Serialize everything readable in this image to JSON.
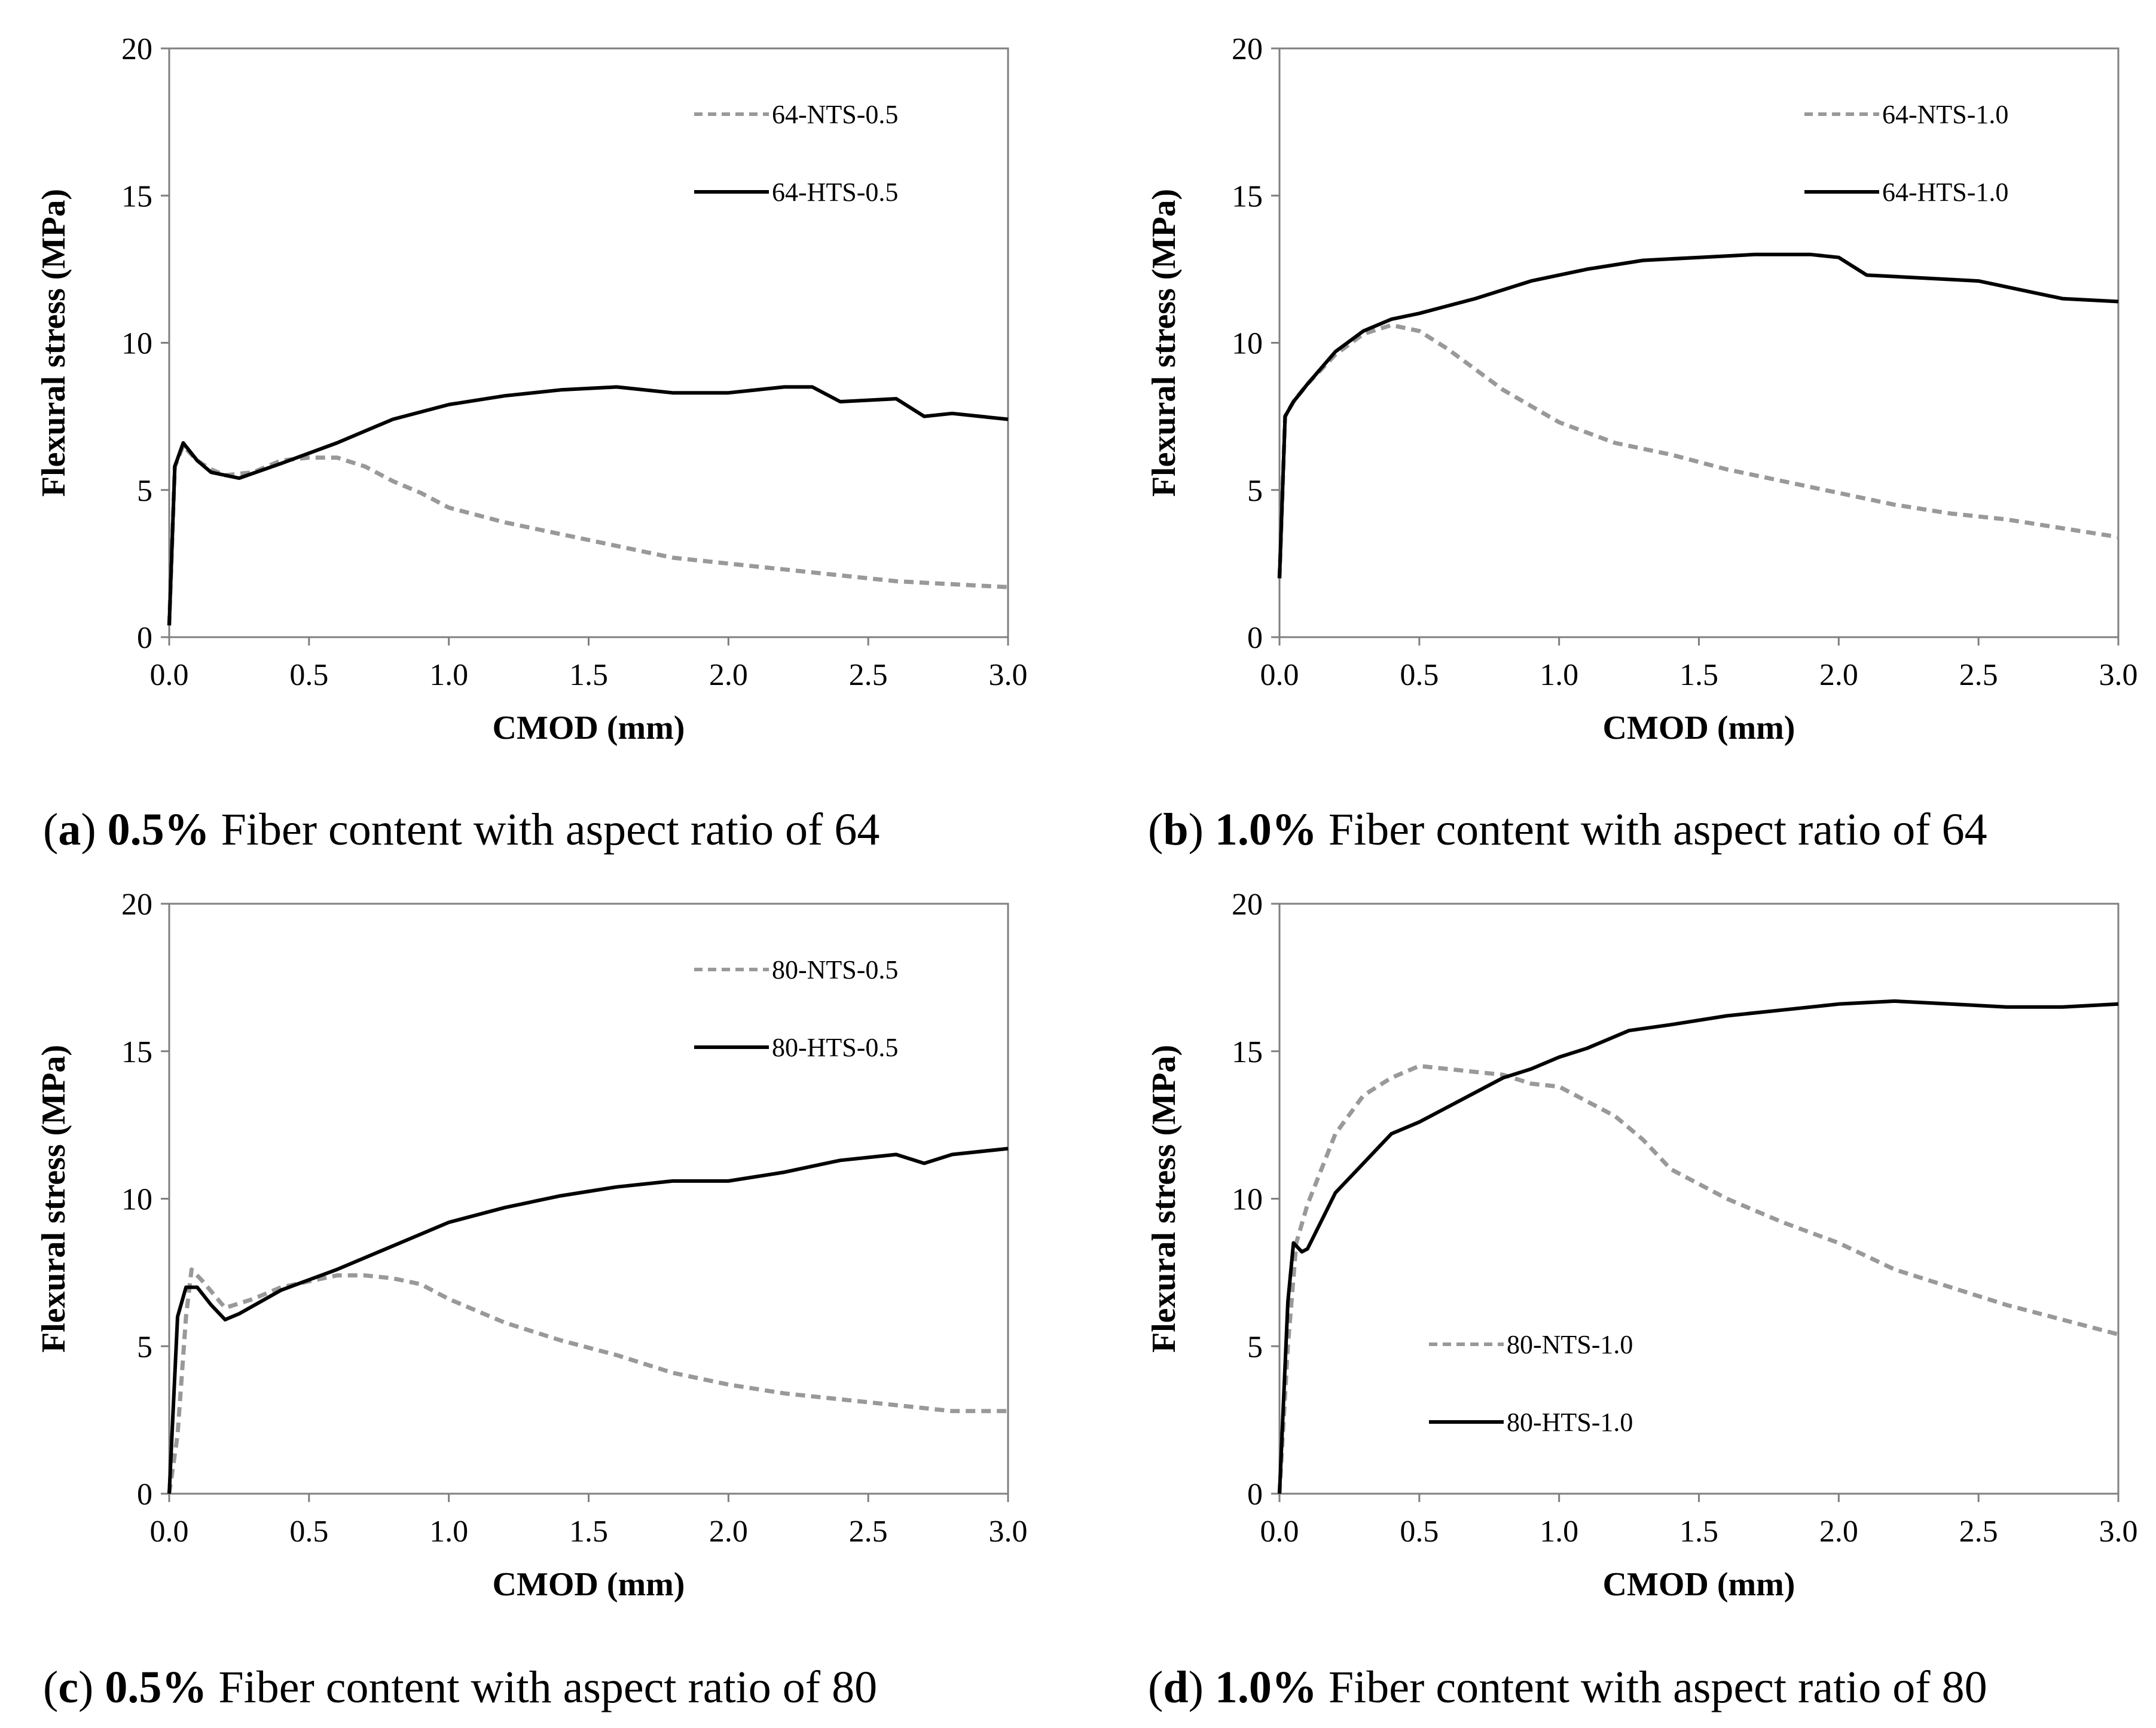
{
  "chart_data": [
    {
      "type": "line",
      "panel": "a",
      "xlabel": "CMOD (mm)",
      "ylabel": "Flexural stress (MPa)",
      "xlim": [
        0,
        3.0
      ],
      "ylim": [
        0,
        20
      ],
      "xticks": [
        "0.0",
        "0.5",
        "1.0",
        "1.5",
        "2.0",
        "2.5",
        "3.0"
      ],
      "yticks": [
        "0",
        "5",
        "10",
        "15",
        "20"
      ],
      "legend_position": "top-right",
      "caption": {
        "letter": "a",
        "bold": "0.5%",
        "text": " Fiber content with aspect ratio of 64"
      },
      "series": [
        {
          "name": "64-NTS-0.5",
          "style": "dashed",
          "color": "#999999",
          "x": [
            0,
            0.02,
            0.05,
            0.1,
            0.15,
            0.2,
            0.3,
            0.4,
            0.5,
            0.6,
            0.7,
            0.8,
            0.9,
            1.0,
            1.2,
            1.4,
            1.6,
            1.8,
            2.0,
            2.2,
            2.4,
            2.6,
            2.8,
            3.0
          ],
          "y": [
            0.4,
            5.8,
            6.5,
            6.0,
            5.7,
            5.5,
            5.6,
            6.0,
            6.1,
            6.1,
            5.8,
            5.3,
            4.9,
            4.4,
            3.9,
            3.5,
            3.1,
            2.7,
            2.5,
            2.3,
            2.1,
            1.9,
            1.8,
            1.7
          ]
        },
        {
          "name": "64-HTS-0.5",
          "style": "solid",
          "color": "#000000",
          "x": [
            0,
            0.02,
            0.05,
            0.1,
            0.15,
            0.2,
            0.25,
            0.4,
            0.6,
            0.8,
            1.0,
            1.2,
            1.4,
            1.6,
            1.8,
            2.0,
            2.2,
            2.3,
            2.4,
            2.6,
            2.7,
            2.8,
            3.0
          ],
          "y": [
            0.4,
            5.8,
            6.6,
            6.0,
            5.6,
            5.5,
            5.4,
            5.9,
            6.6,
            7.4,
            7.9,
            8.2,
            8.4,
            8.5,
            8.3,
            8.3,
            8.5,
            8.5,
            8.0,
            8.1,
            7.5,
            7.6,
            7.4
          ]
        }
      ]
    },
    {
      "type": "line",
      "panel": "b",
      "xlabel": "CMOD (mm)",
      "ylabel": "Flexural stress (MPa)",
      "xlim": [
        0,
        3.0
      ],
      "ylim": [
        0,
        20
      ],
      "xticks": [
        "0.0",
        "0.5",
        "1.0",
        "1.5",
        "2.0",
        "2.5",
        "3.0"
      ],
      "yticks": [
        "0",
        "5",
        "10",
        "15",
        "20"
      ],
      "legend_position": "top-right",
      "caption": {
        "letter": "b",
        "bold": "1.0%",
        "text": " Fiber content with aspect ratio of 64"
      },
      "series": [
        {
          "name": "64-NTS-1.0",
          "style": "dashed",
          "color": "#999999",
          "x": [
            0,
            0.02,
            0.05,
            0.1,
            0.2,
            0.3,
            0.4,
            0.5,
            0.6,
            0.7,
            0.8,
            1.0,
            1.2,
            1.4,
            1.6,
            1.8,
            2.0,
            2.2,
            2.4,
            2.6,
            2.8,
            3.0
          ],
          "y": [
            2.0,
            7.5,
            8.0,
            8.6,
            9.6,
            10.3,
            10.6,
            10.4,
            9.8,
            9.1,
            8.4,
            7.3,
            6.6,
            6.2,
            5.7,
            5.3,
            4.9,
            4.5,
            4.2,
            4.0,
            3.7,
            3.4
          ]
        },
        {
          "name": "64-HTS-1.0",
          "style": "solid",
          "color": "#000000",
          "x": [
            0,
            0.02,
            0.05,
            0.1,
            0.2,
            0.3,
            0.4,
            0.5,
            0.7,
            0.9,
            1.1,
            1.3,
            1.5,
            1.7,
            1.9,
            2.0,
            2.1,
            2.3,
            2.5,
            2.7,
            2.8,
            3.0
          ],
          "y": [
            2.0,
            7.5,
            8.0,
            8.6,
            9.7,
            10.4,
            10.8,
            11.0,
            11.5,
            12.1,
            12.5,
            12.8,
            12.9,
            13.0,
            13.0,
            12.9,
            12.3,
            12.2,
            12.1,
            11.7,
            11.5,
            11.4
          ]
        }
      ]
    },
    {
      "type": "line",
      "panel": "c",
      "xlabel": "CMOD (mm)",
      "ylabel": "Flexural stress (MPa)",
      "xlim": [
        0,
        3.0
      ],
      "ylim": [
        0,
        20
      ],
      "xticks": [
        "0.0",
        "0.5",
        "1.0",
        "1.5",
        "2.0",
        "2.5",
        "3.0"
      ],
      "yticks": [
        "0",
        "5",
        "10",
        "15",
        "20"
      ],
      "legend_position": "top-right",
      "caption": {
        "letter": "c",
        "bold": "0.5%",
        "text": " Fiber content with aspect ratio of 80"
      },
      "series": [
        {
          "name": "80-NTS-0.5",
          "style": "dashed",
          "color": "#999999",
          "x": [
            0,
            0.03,
            0.06,
            0.08,
            0.12,
            0.2,
            0.3,
            0.4,
            0.5,
            0.6,
            0.7,
            0.8,
            0.9,
            1.0,
            1.2,
            1.4,
            1.6,
            1.8,
            2.0,
            2.2,
            2.4,
            2.6,
            2.8,
            3.0
          ],
          "y": [
            0,
            2.0,
            6.0,
            7.6,
            7.2,
            6.3,
            6.6,
            7.0,
            7.2,
            7.4,
            7.4,
            7.3,
            7.1,
            6.6,
            5.8,
            5.2,
            4.7,
            4.1,
            3.7,
            3.4,
            3.2,
            3.0,
            2.8,
            2.8
          ]
        },
        {
          "name": "80-HTS-0.5",
          "style": "solid",
          "color": "#000000",
          "x": [
            0,
            0.03,
            0.06,
            0.1,
            0.15,
            0.2,
            0.25,
            0.4,
            0.6,
            0.8,
            1.0,
            1.2,
            1.4,
            1.6,
            1.8,
            2.0,
            2.2,
            2.4,
            2.6,
            2.7,
            2.8,
            3.0
          ],
          "y": [
            0,
            6.0,
            7.0,
            7.0,
            6.4,
            5.9,
            6.1,
            6.9,
            7.6,
            8.4,
            9.2,
            9.7,
            10.1,
            10.4,
            10.6,
            10.6,
            10.9,
            11.3,
            11.5,
            11.2,
            11.5,
            11.7
          ]
        }
      ]
    },
    {
      "type": "line",
      "panel": "d",
      "xlabel": "CMOD (mm)",
      "ylabel": "Flexural stress (MPa)",
      "xlim": [
        0,
        3.0
      ],
      "ylim": [
        0,
        20
      ],
      "xticks": [
        "0.0",
        "0.5",
        "1.0",
        "1.5",
        "2.0",
        "2.5",
        "3.0"
      ],
      "yticks": [
        "0",
        "5",
        "10",
        "15",
        "20"
      ],
      "legend_position": "bottom-left",
      "caption": {
        "letter": "d",
        "bold": "1.0%",
        "text": " Fiber content with aspect ratio of 80"
      },
      "series": [
        {
          "name": "80-NTS-1.0",
          "style": "dashed",
          "color": "#999999",
          "x": [
            0,
            0.03,
            0.06,
            0.1,
            0.2,
            0.3,
            0.4,
            0.5,
            0.6,
            0.7,
            0.8,
            0.9,
            1.0,
            1.1,
            1.2,
            1.3,
            1.4,
            1.6,
            1.8,
            2.0,
            2.2,
            2.4,
            2.6,
            2.8,
            3.0
          ],
          "y": [
            0,
            5.0,
            8.5,
            9.8,
            12.2,
            13.5,
            14.1,
            14.5,
            14.4,
            14.3,
            14.2,
            13.9,
            13.8,
            13.3,
            12.8,
            12.0,
            11.0,
            10.0,
            9.2,
            8.5,
            7.6,
            7.0,
            6.4,
            5.9,
            5.4
          ]
        },
        {
          "name": "80-HTS-1.0",
          "style": "solid",
          "color": "#000000",
          "x": [
            0,
            0.03,
            0.05,
            0.08,
            0.1,
            0.2,
            0.3,
            0.4,
            0.5,
            0.6,
            0.7,
            0.8,
            0.9,
            1.0,
            1.1,
            1.25,
            1.4,
            1.6,
            1.8,
            2.0,
            2.2,
            2.4,
            2.6,
            2.8,
            3.0
          ],
          "y": [
            0,
            6.5,
            8.5,
            8.2,
            8.3,
            10.2,
            11.2,
            12.2,
            12.6,
            13.1,
            13.6,
            14.1,
            14.4,
            14.8,
            15.1,
            15.7,
            15.9,
            16.2,
            16.4,
            16.6,
            16.7,
            16.6,
            16.5,
            16.5,
            16.6
          ]
        }
      ]
    }
  ]
}
